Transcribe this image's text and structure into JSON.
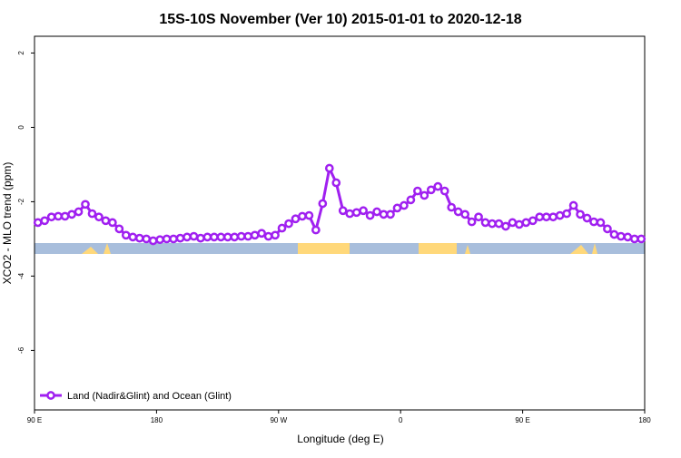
{
  "chart_data": {
    "type": "line",
    "title": "15S-10S November (Ver 10)   2015-01-01 to 2020-12-18",
    "x_label": "Longitude (deg E)",
    "y_label": "XCO2 - MLO trend (ppm)",
    "x": [
      92.5,
      97.5,
      102.5,
      107.5,
      112.5,
      117.5,
      122.5,
      127.5,
      132.5,
      137.5,
      142.5,
      147.5,
      152.5,
      157.5,
      162.5,
      167.5,
      172.5,
      177.5,
      182.5,
      187.5,
      192.5,
      197.5,
      202.5,
      207.5,
      212.5,
      217.5,
      222.5,
      227.5,
      232.5,
      237.5,
      242.5,
      247.5,
      252.5,
      257.5,
      262.5,
      267.5,
      272.5,
      277.5,
      282.5,
      287.5,
      292.5,
      297.5,
      302.5,
      307.5,
      312.5,
      317.5,
      322.5,
      327.5,
      332.5,
      337.5,
      342.5,
      347.5,
      352.5,
      357.5,
      362.5,
      367.5,
      372.5,
      377.5,
      382.5,
      387.5,
      392.5,
      397.5,
      402.5,
      407.5,
      412.5,
      417.5,
      422.5,
      427.5,
      432.5,
      437.5,
      442.5,
      447.5,
      452.5,
      457.5,
      462.5,
      467.5,
      472.5,
      477.5,
      482.5,
      487.5,
      492.5,
      497.5,
      502.5,
      507.5,
      512.5,
      517.5,
      522.5,
      527.5,
      532.5,
      537.5
    ],
    "series": [
      {
        "name": "Land (Nadir&Glint) and Ocean (Glint)",
        "color": "#a020f0",
        "values": [
          -2.56,
          -2.51,
          -2.41,
          -2.39,
          -2.39,
          -2.34,
          -2.27,
          -2.07,
          -2.32,
          -2.41,
          -2.51,
          -2.56,
          -2.73,
          -2.9,
          -2.95,
          -2.98,
          -3.0,
          -3.05,
          -3.02,
          -3.0,
          -3.0,
          -2.98,
          -2.95,
          -2.93,
          -2.98,
          -2.95,
          -2.95,
          -2.95,
          -2.95,
          -2.95,
          -2.93,
          -2.93,
          -2.9,
          -2.85,
          -2.93,
          -2.9,
          -2.71,
          -2.59,
          -2.46,
          -2.39,
          -2.37,
          -2.76,
          -2.05,
          -1.1,
          -1.49,
          -2.24,
          -2.32,
          -2.29,
          -2.24,
          -2.37,
          -2.27,
          -2.34,
          -2.34,
          -2.17,
          -2.1,
          -1.95,
          -1.71,
          -1.83,
          -1.68,
          -1.59,
          -1.71,
          -2.15,
          -2.27,
          -2.34,
          -2.54,
          -2.41,
          -2.56,
          -2.59,
          -2.59,
          -2.66,
          -2.56,
          -2.61,
          -2.56,
          -2.51,
          -2.41,
          -2.41,
          -2.41,
          -2.37,
          -2.32,
          -2.1,
          -2.34,
          -2.44,
          -2.54,
          -2.56,
          -2.73,
          -2.88,
          -2.93,
          -2.95,
          -3.0,
          -3.0
        ]
      }
    ],
    "xlim": [
      90,
      540
    ],
    "xticks": [
      {
        "value": 90,
        "label": "90 E"
      },
      {
        "value": 180,
        "label": "180"
      },
      {
        "value": 270,
        "label": "90 W"
      },
      {
        "value": 360,
        "label": "0"
      },
      {
        "value": 450,
        "label": "90 E"
      },
      {
        "value": 540,
        "label": "180"
      }
    ],
    "ylim": [
      -7.6,
      2.45
    ],
    "yticks": [
      2,
      0,
      -2,
      -4,
      -6
    ],
    "legend": "bottom-left"
  }
}
